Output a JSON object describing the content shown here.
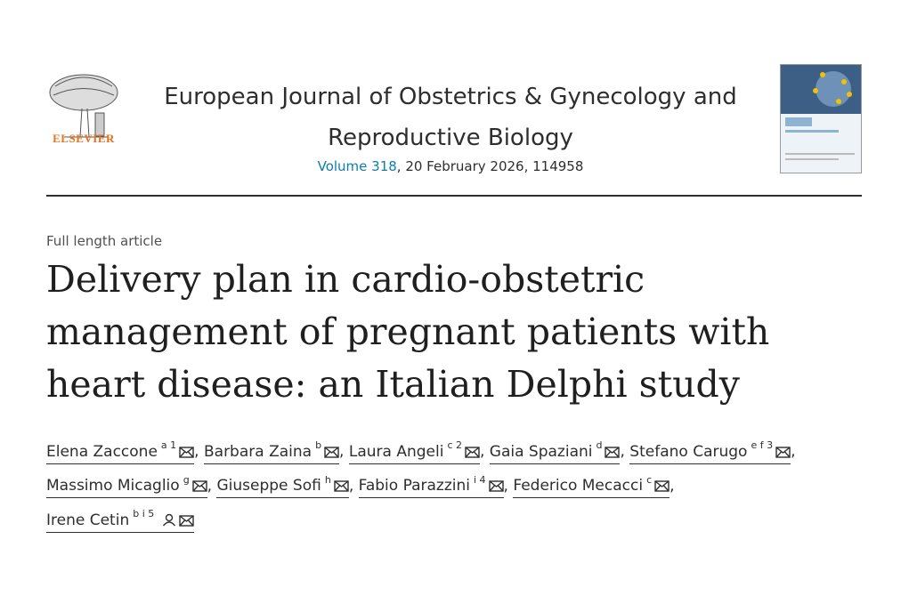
{
  "header": {
    "publisher": "ELSEVIER",
    "journal_title": "European Journal of Obstetrics & Gynecology and Reproductive Biology",
    "volume_link": "Volume 318",
    "volume_rest": ", 20 February 2026, 114958"
  },
  "article": {
    "type": "Full length article",
    "title": "Delivery plan in cardio-obstetric management of pregnant patients with heart disease: an Italian Delphi study",
    "separator": ",",
    "authors": [
      {
        "name": "Elena Zaccone",
        "sup": "a 1"
      },
      {
        "name": "Barbara Zaina",
        "sup": "b"
      },
      {
        "name": "Laura Angeli",
        "sup": "c 2"
      },
      {
        "name": "Gaia Spaziani",
        "sup": "d"
      },
      {
        "name": "Stefano Carugo",
        "sup": "e f 3"
      },
      {
        "name": "Massimo Micaglio",
        "sup": "g"
      },
      {
        "name": "Giuseppe Sofi",
        "sup": "h"
      },
      {
        "name": "Fabio Parazzini",
        "sup": "i 4"
      },
      {
        "name": "Federico Mecacci",
        "sup": "c"
      },
      {
        "name": "Irene Cetin",
        "sup": "b i 5",
        "corresponding": true
      }
    ]
  }
}
